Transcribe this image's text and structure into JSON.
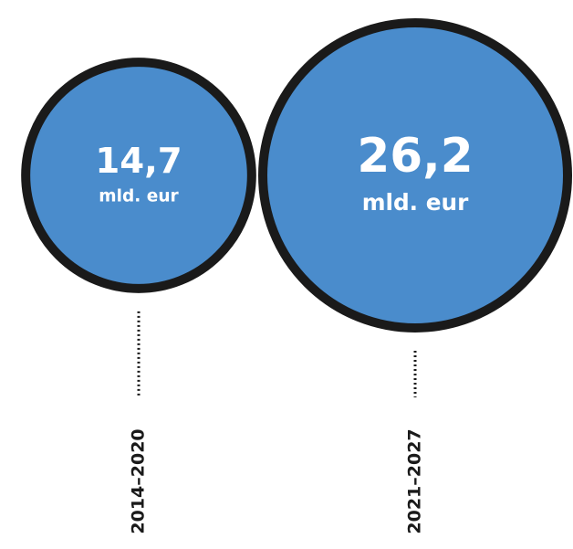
{
  "chart_data": {
    "type": "bubble",
    "categories": [
      "2014–2020",
      "2021–2027"
    ],
    "values": [
      14.7,
      26.2
    ],
    "value_labels": [
      "14,7",
      "26,2"
    ],
    "unit": "mld. eur",
    "color": "#4a8ccc"
  }
}
